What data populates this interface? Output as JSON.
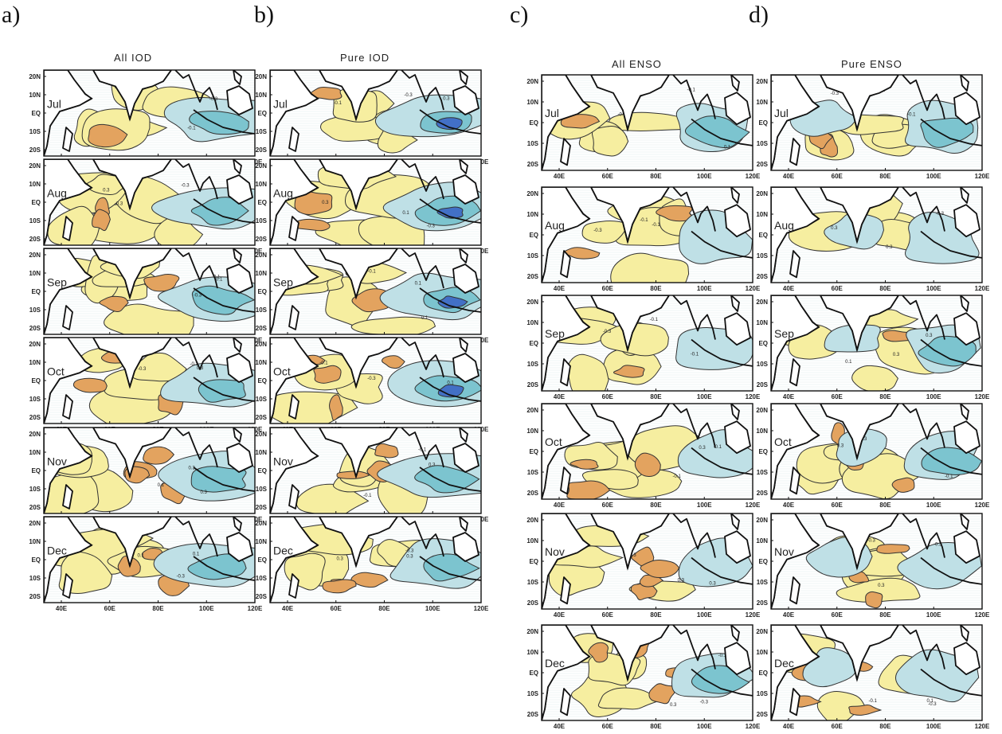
{
  "panel_letters": [
    "a)",
    "b)",
    "c)",
    "d)"
  ],
  "columns": [
    {
      "title": "All  IOD"
    },
    {
      "title": "Pure  IOD"
    },
    {
      "title": "All  ENSO"
    },
    {
      "title": "Pure  ENSO"
    }
  ],
  "months": [
    "Jul",
    "Aug",
    "Sep",
    "Oct",
    "Nov",
    "Dec"
  ],
  "lat_ticks": [
    "20N",
    "10N",
    "EQ",
    "10S",
    "20S"
  ],
  "lon_ticks": [
    "40E",
    "60E",
    "80E",
    "100E",
    "120E"
  ],
  "contour_labels": [
    "0.1",
    "0.3",
    "-0.1",
    "-0.3"
  ],
  "colors": {
    "positive_light": "#f6eea0",
    "positive_strong": "#e3a35f",
    "negative_light": "#bfe0e6",
    "negative_mid": "#7cc4cf",
    "negative_strong": "#4270c6",
    "coast": "#111111"
  }
}
